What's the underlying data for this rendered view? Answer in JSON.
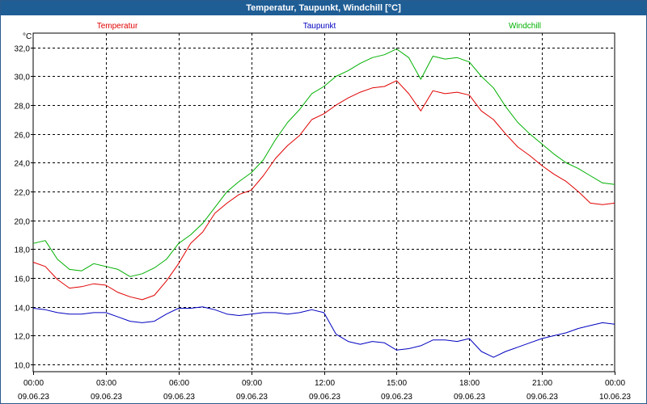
{
  "window": {
    "title": "Temperatur, Taupunkt, Windchill [°C]"
  },
  "chart_data": {
    "type": "line",
    "title": "Temperatur, Taupunkt, Windchill [°C]",
    "ylabel": "°C",
    "xlim": [
      "09.06.23 00:00",
      "10.06.23 00:00"
    ],
    "ylim": [
      9.5,
      33.0
    ],
    "y_ticks": [
      10.0,
      12.0,
      14.0,
      16.0,
      18.0,
      20.0,
      22.0,
      24.0,
      26.0,
      28.0,
      30.0,
      32.0
    ],
    "y_tick_labels": [
      "10,0",
      "12,0",
      "14,0",
      "16,0",
      "18,0",
      "20,0",
      "22,0",
      "24,0",
      "26,0",
      "28,0",
      "30,0",
      "32,0"
    ],
    "x_ticks": [
      {
        "time": "00:00",
        "date": "09.06.23"
      },
      {
        "time": "03:00",
        "date": "09.06.23"
      },
      {
        "time": "06:00",
        "date": "09.06.23"
      },
      {
        "time": "09:00",
        "date": "09.06.23"
      },
      {
        "time": "12:00",
        "date": "09.06.23"
      },
      {
        "time": "15:00",
        "date": "09.06.23"
      },
      {
        "time": "18:00",
        "date": "09.06.23"
      },
      {
        "time": "21:00",
        "date": "09.06.23"
      },
      {
        "time": "00:00",
        "date": "10.06.23"
      }
    ],
    "grid": true,
    "legend_position": "top",
    "series": [
      {
        "name": "Temperatur",
        "color": "#e00000",
        "x": [
          "00:00",
          "00:30",
          "01:00",
          "01:30",
          "02:00",
          "02:30",
          "03:00",
          "03:30",
          "04:00",
          "04:30",
          "05:00",
          "05:30",
          "06:00",
          "06:30",
          "07:00",
          "07:30",
          "08:00",
          "08:30",
          "09:00",
          "09:30",
          "10:00",
          "10:30",
          "11:00",
          "11:30",
          "12:00",
          "12:30",
          "13:00",
          "13:30",
          "14:00",
          "14:30",
          "15:00",
          "15:30",
          "16:00",
          "16:30",
          "17:00",
          "17:30",
          "18:00",
          "18:30",
          "19:00",
          "19:30",
          "20:00",
          "20:30",
          "21:00",
          "21:30",
          "22:00",
          "22:30",
          "23:00",
          "23:30",
          "24:00"
        ],
        "y": [
          17.1,
          16.8,
          15.9,
          15.3,
          15.4,
          15.6,
          15.5,
          15.0,
          14.7,
          14.5,
          14.8,
          15.8,
          17.0,
          18.4,
          19.2,
          20.5,
          21.2,
          21.8,
          22.1,
          23.1,
          24.3,
          25.2,
          25.9,
          27.0,
          27.4,
          28.0,
          28.5,
          28.9,
          29.2,
          29.3,
          29.7,
          28.8,
          27.6,
          29.0,
          28.8,
          28.9,
          28.7,
          27.6,
          27.0,
          26.0,
          25.1,
          24.5,
          23.8,
          23.2,
          22.7,
          22.0,
          21.2,
          21.1,
          21.2
        ]
      },
      {
        "name": "Taupunkt",
        "color": "#0000c0",
        "x": [
          "00:00",
          "00:30",
          "01:00",
          "01:30",
          "02:00",
          "02:30",
          "03:00",
          "03:30",
          "04:00",
          "04:30",
          "05:00",
          "05:30",
          "06:00",
          "06:30",
          "07:00",
          "07:30",
          "08:00",
          "08:30",
          "09:00",
          "09:30",
          "10:00",
          "10:30",
          "11:00",
          "11:30",
          "12:00",
          "12:30",
          "13:00",
          "13:30",
          "14:00",
          "14:30",
          "15:00",
          "15:30",
          "16:00",
          "16:30",
          "17:00",
          "17:30",
          "18:00",
          "18:30",
          "19:00",
          "19:30",
          "20:00",
          "20:30",
          "21:00",
          "21:30",
          "22:00",
          "22:30",
          "23:00",
          "23:30",
          "24:00"
        ],
        "y": [
          13.9,
          13.8,
          13.6,
          13.5,
          13.5,
          13.6,
          13.6,
          13.3,
          13.0,
          12.9,
          13.0,
          13.5,
          13.9,
          13.9,
          14.0,
          13.8,
          13.5,
          13.4,
          13.5,
          13.6,
          13.6,
          13.5,
          13.6,
          13.8,
          13.6,
          12.1,
          11.6,
          11.4,
          11.6,
          11.5,
          11.0,
          11.1,
          11.3,
          11.7,
          11.7,
          11.6,
          11.8,
          10.9,
          10.5,
          10.9,
          11.2,
          11.5,
          11.8,
          12.0,
          12.2,
          12.5,
          12.7,
          12.9,
          12.8
        ]
      },
      {
        "name": "Windchill",
        "color": "#00b000",
        "x": [
          "00:00",
          "00:30",
          "01:00",
          "01:30",
          "02:00",
          "02:30",
          "03:00",
          "03:30",
          "04:00",
          "04:30",
          "05:00",
          "05:30",
          "06:00",
          "06:30",
          "07:00",
          "07:30",
          "08:00",
          "08:30",
          "09:00",
          "09:30",
          "10:00",
          "10:30",
          "11:00",
          "11:30",
          "12:00",
          "12:30",
          "13:00",
          "13:30",
          "14:00",
          "14:30",
          "15:00",
          "15:30",
          "16:00",
          "16:30",
          "17:00",
          "17:30",
          "18:00",
          "18:30",
          "19:00",
          "19:30",
          "20:00",
          "20:30",
          "21:00",
          "21:30",
          "22:00",
          "22:30",
          "23:00",
          "23:30",
          "24:00"
        ],
        "y": [
          18.4,
          18.6,
          17.3,
          16.6,
          16.5,
          17.0,
          16.8,
          16.6,
          16.1,
          16.3,
          16.7,
          17.3,
          18.4,
          19.0,
          19.8,
          20.9,
          22.0,
          22.7,
          23.3,
          24.2,
          25.6,
          26.8,
          27.7,
          28.8,
          29.3,
          30.0,
          30.4,
          30.9,
          31.3,
          31.5,
          31.9,
          31.3,
          29.8,
          31.4,
          31.2,
          31.3,
          31.0,
          30.0,
          29.2,
          27.9,
          26.8,
          26.0,
          25.3,
          24.6,
          24.0,
          23.6,
          23.1,
          22.6,
          22.5
        ]
      }
    ]
  }
}
